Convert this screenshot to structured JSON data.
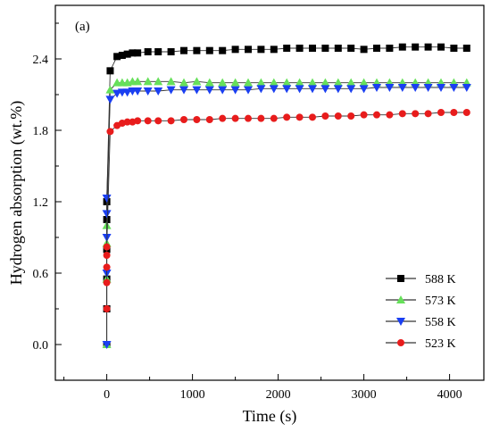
{
  "chart_data": {
    "type": "scatter",
    "panel_label": "(a)",
    "xlabel": "Time (s)",
    "ylabel": "Hydrogen absorption (wt.%)",
    "xlim": [
      -600,
      4400
    ],
    "ylim": [
      -0.3,
      2.85
    ],
    "xticks": [
      0,
      1000,
      2000,
      3000,
      4000
    ],
    "xtick_labels": [
      "0",
      "1000",
      "2000",
      "3000",
      "4000"
    ],
    "yticks": [
      0.0,
      0.6,
      1.2,
      1.8,
      2.4
    ],
    "ytick_labels": [
      "0.0",
      "0.6",
      "1.2",
      "1.8",
      "2.4"
    ],
    "grid": false,
    "legend_position": "bottom-right",
    "series": [
      {
        "name": "588 K",
        "color": "#000000",
        "marker": "square",
        "points": [
          [
            0,
            0.0
          ],
          [
            0,
            0.3
          ],
          [
            0,
            0.55
          ],
          [
            0,
            0.8
          ],
          [
            0,
            1.05
          ],
          [
            0,
            1.2
          ],
          [
            40,
            2.3
          ],
          [
            120,
            2.42
          ],
          [
            180,
            2.43
          ],
          [
            240,
            2.44
          ],
          [
            300,
            2.45
          ],
          [
            360,
            2.45
          ],
          [
            480,
            2.46
          ],
          [
            600,
            2.46
          ],
          [
            750,
            2.46
          ],
          [
            900,
            2.47
          ],
          [
            1050,
            2.47
          ],
          [
            1200,
            2.47
          ],
          [
            1350,
            2.47
          ],
          [
            1500,
            2.48
          ],
          [
            1650,
            2.48
          ],
          [
            1800,
            2.48
          ],
          [
            1950,
            2.48
          ],
          [
            2100,
            2.49
          ],
          [
            2250,
            2.49
          ],
          [
            2400,
            2.49
          ],
          [
            2550,
            2.49
          ],
          [
            2700,
            2.49
          ],
          [
            2850,
            2.49
          ],
          [
            3000,
            2.48
          ],
          [
            3150,
            2.49
          ],
          [
            3300,
            2.49
          ],
          [
            3450,
            2.5
          ],
          [
            3600,
            2.5
          ],
          [
            3750,
            2.5
          ],
          [
            3900,
            2.5
          ],
          [
            4050,
            2.49
          ],
          [
            4200,
            2.49
          ]
        ]
      },
      {
        "name": "573 K",
        "color": "#66e05a",
        "marker": "triangle-up",
        "points": [
          [
            0,
            0.0
          ],
          [
            0,
            0.55
          ],
          [
            0,
            0.85
          ],
          [
            0,
            1.0
          ],
          [
            40,
            2.14
          ],
          [
            120,
            2.2
          ],
          [
            180,
            2.2
          ],
          [
            240,
            2.2
          ],
          [
            300,
            2.21
          ],
          [
            360,
            2.21
          ],
          [
            480,
            2.21
          ],
          [
            600,
            2.21
          ],
          [
            750,
            2.21
          ],
          [
            900,
            2.2
          ],
          [
            1050,
            2.21
          ],
          [
            1200,
            2.2
          ],
          [
            1350,
            2.2
          ],
          [
            1500,
            2.2
          ],
          [
            1650,
            2.2
          ],
          [
            1800,
            2.2
          ],
          [
            1950,
            2.2
          ],
          [
            2100,
            2.2
          ],
          [
            2250,
            2.2
          ],
          [
            2400,
            2.2
          ],
          [
            2550,
            2.2
          ],
          [
            2700,
            2.2
          ],
          [
            2850,
            2.2
          ],
          [
            3000,
            2.2
          ],
          [
            3150,
            2.2
          ],
          [
            3300,
            2.2
          ],
          [
            3450,
            2.2
          ],
          [
            3600,
            2.2
          ],
          [
            3750,
            2.2
          ],
          [
            3900,
            2.2
          ],
          [
            4050,
            2.2
          ],
          [
            4200,
            2.2
          ]
        ]
      },
      {
        "name": "558 K",
        "color": "#1a3ff2",
        "marker": "triangle-down",
        "points": [
          [
            0,
            0.0
          ],
          [
            0,
            0.6
          ],
          [
            0,
            0.9
          ],
          [
            0,
            1.1
          ],
          [
            0,
            1.23
          ],
          [
            40,
            2.06
          ],
          [
            120,
            2.11
          ],
          [
            180,
            2.12
          ],
          [
            240,
            2.12
          ],
          [
            300,
            2.13
          ],
          [
            360,
            2.13
          ],
          [
            480,
            2.13
          ],
          [
            600,
            2.13
          ],
          [
            750,
            2.14
          ],
          [
            900,
            2.14
          ],
          [
            1050,
            2.14
          ],
          [
            1200,
            2.14
          ],
          [
            1350,
            2.14
          ],
          [
            1500,
            2.14
          ],
          [
            1650,
            2.14
          ],
          [
            1800,
            2.15
          ],
          [
            1950,
            2.15
          ],
          [
            2100,
            2.15
          ],
          [
            2250,
            2.15
          ],
          [
            2400,
            2.15
          ],
          [
            2550,
            2.15
          ],
          [
            2700,
            2.15
          ],
          [
            2850,
            2.15
          ],
          [
            3000,
            2.15
          ],
          [
            3150,
            2.16
          ],
          [
            3300,
            2.16
          ],
          [
            3450,
            2.16
          ],
          [
            3600,
            2.16
          ],
          [
            3750,
            2.16
          ],
          [
            3900,
            2.16
          ],
          [
            4050,
            2.16
          ],
          [
            4200,
            2.16
          ]
        ]
      },
      {
        "name": "523 K",
        "color": "#e81c1c",
        "marker": "circle",
        "points": [
          [
            0,
            0.3
          ],
          [
            0,
            0.52
          ],
          [
            0,
            0.65
          ],
          [
            0,
            0.75
          ],
          [
            0,
            0.82
          ],
          [
            40,
            1.79
          ],
          [
            120,
            1.84
          ],
          [
            180,
            1.86
          ],
          [
            240,
            1.87
          ],
          [
            300,
            1.87
          ],
          [
            360,
            1.88
          ],
          [
            480,
            1.88
          ],
          [
            600,
            1.88
          ],
          [
            750,
            1.88
          ],
          [
            900,
            1.89
          ],
          [
            1050,
            1.89
          ],
          [
            1200,
            1.89
          ],
          [
            1350,
            1.9
          ],
          [
            1500,
            1.9
          ],
          [
            1650,
            1.9
          ],
          [
            1800,
            1.9
          ],
          [
            1950,
            1.9
          ],
          [
            2100,
            1.91
          ],
          [
            2250,
            1.91
          ],
          [
            2400,
            1.91
          ],
          [
            2550,
            1.92
          ],
          [
            2700,
            1.92
          ],
          [
            2850,
            1.92
          ],
          [
            3000,
            1.93
          ],
          [
            3150,
            1.93
          ],
          [
            3300,
            1.93
          ],
          [
            3450,
            1.94
          ],
          [
            3600,
            1.94
          ],
          [
            3750,
            1.94
          ],
          [
            3900,
            1.95
          ],
          [
            4050,
            1.95
          ],
          [
            4200,
            1.95
          ]
        ]
      }
    ]
  }
}
